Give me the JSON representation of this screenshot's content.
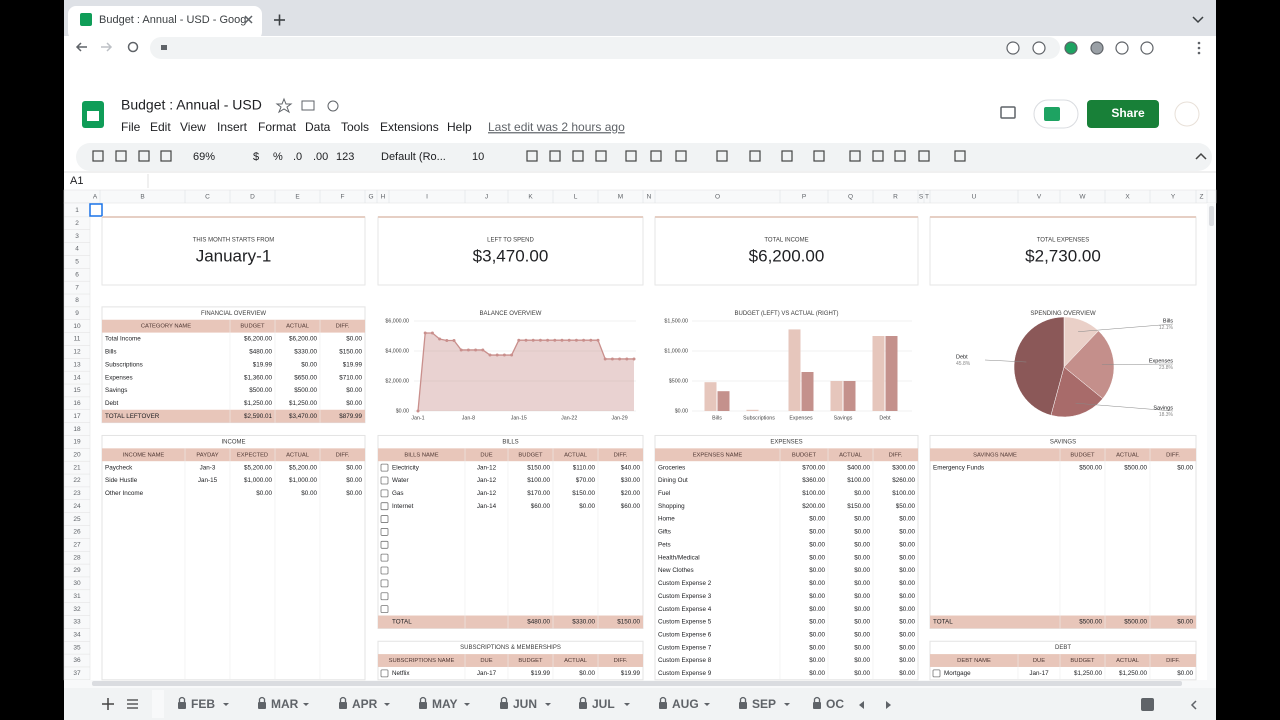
{
  "browser": {
    "tab_title": "Budget : Annual - USD - Goog"
  },
  "app": {
    "doc_title": "Budget : Annual - USD",
    "menu": [
      "File",
      "Edit",
      "View",
      "Insert",
      "Format",
      "Data",
      "Tools",
      "Extensions",
      "Help"
    ],
    "last_edit": "Last edit was 2 hours ago",
    "share": "Share"
  },
  "toolbar": {
    "zoom": "69%",
    "items": [
      "$",
      "%",
      ".0",
      ".00",
      "123"
    ],
    "font": "Default (Ro...",
    "font_size": "10"
  },
  "formula_bar": {
    "cell_ref": "A1"
  },
  "sheet": {
    "columns": [
      "A",
      "B",
      "C",
      "D",
      "E",
      "F",
      "G",
      "H",
      "I",
      "J",
      "K",
      "L",
      "M",
      "N",
      "O",
      "P",
      "Q",
      "R",
      "S",
      "T",
      "U",
      "V",
      "W",
      "X",
      "Y",
      "Z"
    ],
    "rows": [
      1,
      2,
      3,
      4,
      5,
      6,
      7,
      8,
      9,
      10,
      11,
      12,
      13,
      14,
      15,
      16,
      17,
      18,
      19,
      20,
      21,
      22,
      23,
      24,
      25,
      26,
      27,
      28,
      29,
      30,
      31,
      32,
      33,
      34,
      35,
      36,
      37
    ]
  },
  "cards": [
    {
      "label": "THIS MONTH STARTS FROM",
      "value": "January-1"
    },
    {
      "label": "LEFT TO SPEND",
      "value": "$3,470.00"
    },
    {
      "label": "TOTAL INCOME",
      "value": "$6,200.00"
    },
    {
      "label": "TOTAL EXPENSES",
      "value": "$2,730.00"
    }
  ],
  "tables": [
    {
      "title": "FINANCIAL OVERVIEW",
      "headers": [
        "CATEGORY NAME",
        "BUDGET",
        "ACTUAL",
        "DIFF."
      ],
      "rows": [
        [
          "Total Income",
          "$6,200.00",
          "$6,200.00",
          "$0.00"
        ],
        [
          "Bills",
          "$480.00",
          "$330.00",
          "$150.00"
        ],
        [
          "Subscriptions",
          "$19.99",
          "$0.00",
          "$19.99"
        ],
        [
          "Expenses",
          "$1,360.00",
          "$650.00",
          "$710.00"
        ],
        [
          "Savings",
          "$500.00",
          "$500.00",
          "$0.00"
        ],
        [
          "Debt",
          "$1,250.00",
          "$1,250.00",
          "$0.00"
        ]
      ],
      "total": [
        "TOTAL LEFTOVER",
        "$2,590.01",
        "$3,470.00",
        "$879.99"
      ]
    },
    {
      "title": "INCOME",
      "headers": [
        "INCOME NAME",
        "PAYDAY",
        "EXPECTED",
        "ACTUAL",
        "DIFF."
      ],
      "rows": [
        [
          "Paycheck",
          "Jan-3",
          "$5,200.00",
          "$5,200.00",
          "$0.00"
        ],
        [
          "Side Hustle",
          "Jan-15",
          "$1,000.00",
          "$1,000.00",
          "$0.00"
        ],
        [
          "Other Income",
          null,
          "$0.00",
          "$0.00",
          "$0.00"
        ]
      ]
    },
    {
      "title": "BILLS",
      "headers": [
        "BILLS NAME",
        "DUE",
        "BUDGET",
        "ACTUAL",
        "DIFF."
      ],
      "rows": [
        [
          "Electricity",
          "Jan-12",
          "$150.00",
          "$110.00",
          "$40.00"
        ],
        [
          "Water",
          "Jan-12",
          "$100.00",
          "$70.00",
          "$30.00"
        ],
        [
          "Gas",
          "Jan-12",
          "$170.00",
          "$150.00",
          "$20.00"
        ],
        [
          "Internet",
          "Jan-14",
          "$60.00",
          "$0.00",
          "$60.00"
        ]
      ],
      "total": [
        "TOTAL",
        null,
        "$480.00",
        "$330.00",
        "$150.00"
      ]
    },
    {
      "title": "EXPENSES",
      "headers": [
        "EXPENSES NAME",
        "BUDGET",
        "ACTUAL",
        "DIFF."
      ],
      "rows": [
        [
          "Groceries",
          "$700.00",
          "$400.00",
          "$300.00"
        ],
        [
          "Dining Out",
          "$360.00",
          "$100.00",
          "$260.00"
        ],
        [
          "Fuel",
          "$100.00",
          "$0.00",
          "$100.00"
        ],
        [
          "Shopping",
          "$200.00",
          "$150.00",
          "$50.00"
        ],
        [
          "Home",
          "$0.00",
          "$0.00",
          "$0.00"
        ],
        [
          "Gifts",
          "$0.00",
          "$0.00",
          "$0.00"
        ],
        [
          "Pets",
          "$0.00",
          "$0.00",
          "$0.00"
        ],
        [
          "Health/Medical",
          "$0.00",
          "$0.00",
          "$0.00"
        ],
        [
          "New Clothes",
          "$0.00",
          "$0.00",
          "$0.00"
        ],
        [
          "Custom Expense 2",
          "$0.00",
          "$0.00",
          "$0.00"
        ],
        [
          "Custom Expense 3",
          "$0.00",
          "$0.00",
          "$0.00"
        ],
        [
          "Custom Expense 4",
          "$0.00",
          "$0.00",
          "$0.00"
        ],
        [
          "Custom Expense 5",
          "$0.00",
          "$0.00",
          "$0.00"
        ],
        [
          "Custom Expense 6",
          "$0.00",
          "$0.00",
          "$0.00"
        ],
        [
          "Custom Expense 7",
          "$0.00",
          "$0.00",
          "$0.00"
        ],
        [
          "Custom Expense 8",
          "$0.00",
          "$0.00",
          "$0.00"
        ],
        [
          "Custom Expense 9",
          "$0.00",
          "$0.00",
          "$0.00"
        ]
      ]
    },
    {
      "title": "SAVINGS",
      "headers": [
        "SAVINGS NAME",
        "BUDGET",
        "ACTUAL",
        "DIFF."
      ],
      "rows": [
        [
          "Emergency Funds",
          "$500.00",
          "$500.00",
          "$0.00"
        ]
      ],
      "total": [
        "TOTAL",
        "$500.00",
        "$500.00",
        "$0.00"
      ]
    },
    {
      "title": "SUBSCRIPTIONS & MEMBERSHIPS",
      "headers": [
        "SUBSCRIPTIONS NAME",
        "DUE",
        "BUDGET",
        "ACTUAL",
        "DIFF."
      ],
      "rows": [
        [
          "Netflix",
          "Jan-17",
          "$19.99",
          "$0.00",
          "$19.99"
        ]
      ]
    },
    {
      "title": "DEBT",
      "headers": [
        "DEBT NAME",
        "DUE",
        "BUDGET",
        "ACTUAL",
        "DIFF."
      ],
      "rows": [
        [
          "Mortgage",
          "Jan-17",
          "$1,250.00",
          "$1,250.00",
          "$0.00"
        ]
      ]
    }
  ],
  "chart_data": [
    {
      "type": "line",
      "title": "BALANCE OVERVIEW",
      "x": [
        "Jan-1",
        null,
        null,
        null,
        null,
        null,
        null,
        "Jan-8",
        null,
        null,
        null,
        null,
        null,
        null,
        "Jan-15",
        null,
        null,
        null,
        null,
        null,
        null,
        "Jan-22",
        null,
        null,
        null,
        null,
        null,
        null,
        "Jan-29",
        null,
        null
      ],
      "values": [
        0,
        5200,
        5200,
        4800,
        4700,
        4700,
        4070,
        4070,
        4070,
        4070,
        3730,
        3730,
        3730,
        3730,
        4720,
        4720,
        4720,
        4720,
        4720,
        4720,
        4720,
        4720,
        4720,
        4720,
        4720,
        4720,
        3470,
        3470,
        3470,
        3470,
        3470
      ],
      "color": "#c98f8c",
      "ylim": [
        0,
        6000
      ],
      "yticks": [
        {
          "value": 0,
          "label": "$0.00"
        },
        {
          "value": 2000,
          "label": "$2,000.00"
        },
        {
          "value": 4000,
          "label": "$4,000.00"
        },
        {
          "value": 6000,
          "label": "$6,000.00"
        }
      ],
      "grid": true
    },
    {
      "type": "bar",
      "title": "BUDGET (LEFT) VS ACTUAL (RIGHT)",
      "categories": [
        "Bills",
        "Subscriptions",
        "Expenses",
        "Savings",
        "Debt"
      ],
      "series": [
        {
          "color": "#e6c6bc",
          "values": [
            480,
            19.99,
            1360,
            500,
            1250
          ]
        },
        {
          "color": "#c4918c",
          "values": [
            330,
            0,
            650,
            500,
            1250
          ]
        }
      ],
      "ylim": [
        0,
        1500
      ],
      "yticks": [
        {
          "value": 0,
          "label": "$0.00"
        },
        {
          "value": 500,
          "label": "$500.00"
        },
        {
          "value": 1000,
          "label": "$1,000.00"
        },
        {
          "value": 1500,
          "label": "$1,500.00"
        }
      ],
      "grid": true
    },
    {
      "type": "pie",
      "title": "SPENDING OVERVIEW",
      "categories": [
        "Bills",
        "Expenses",
        "Savings",
        "Debt"
      ],
      "values": [
        12.1,
        23.8,
        18.3,
        45.8
      ],
      "value_labels": [
        "12.1%",
        "23.8%",
        "18.3%",
        "45.8%"
      ],
      "colors": [
        "#ead0c8",
        "#c48f8b",
        "#a86b6a",
        "#8b5858"
      ]
    }
  ],
  "sheet_tabs": [
    "FEB",
    "MAR",
    "APR",
    "MAY",
    "JUN",
    "JUL",
    "AUG",
    "SEP",
    "OC"
  ]
}
